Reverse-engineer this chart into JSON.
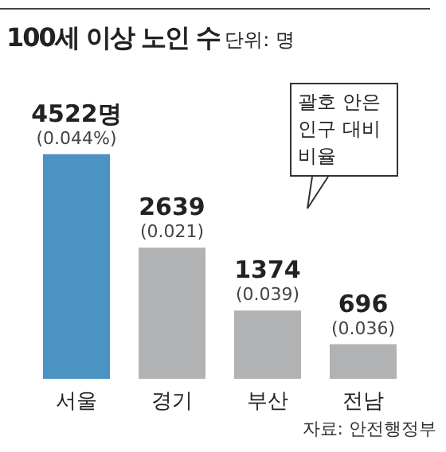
{
  "chart_data": {
    "type": "bar",
    "title": "100세 이상 노인 수",
    "subtitle": "단위: 명",
    "categories": [
      "서울",
      "경기",
      "부산",
      "전남"
    ],
    "values": [
      4522,
      2639,
      1374,
      696
    ],
    "colors": [
      "#4a93c3",
      "#b1b2b4",
      "#b1b2b4",
      "#b1b2b4"
    ],
    "value_labels": [
      "4522명\n(0.044%)",
      "2639\n(0.021)",
      "1374\n(0.039)",
      "696\n(0.036)"
    ],
    "annotations": [
      "괄호 안은 인구 대비 비율",
      "자료: 안전행정부"
    ],
    "grid": false
  }
}
